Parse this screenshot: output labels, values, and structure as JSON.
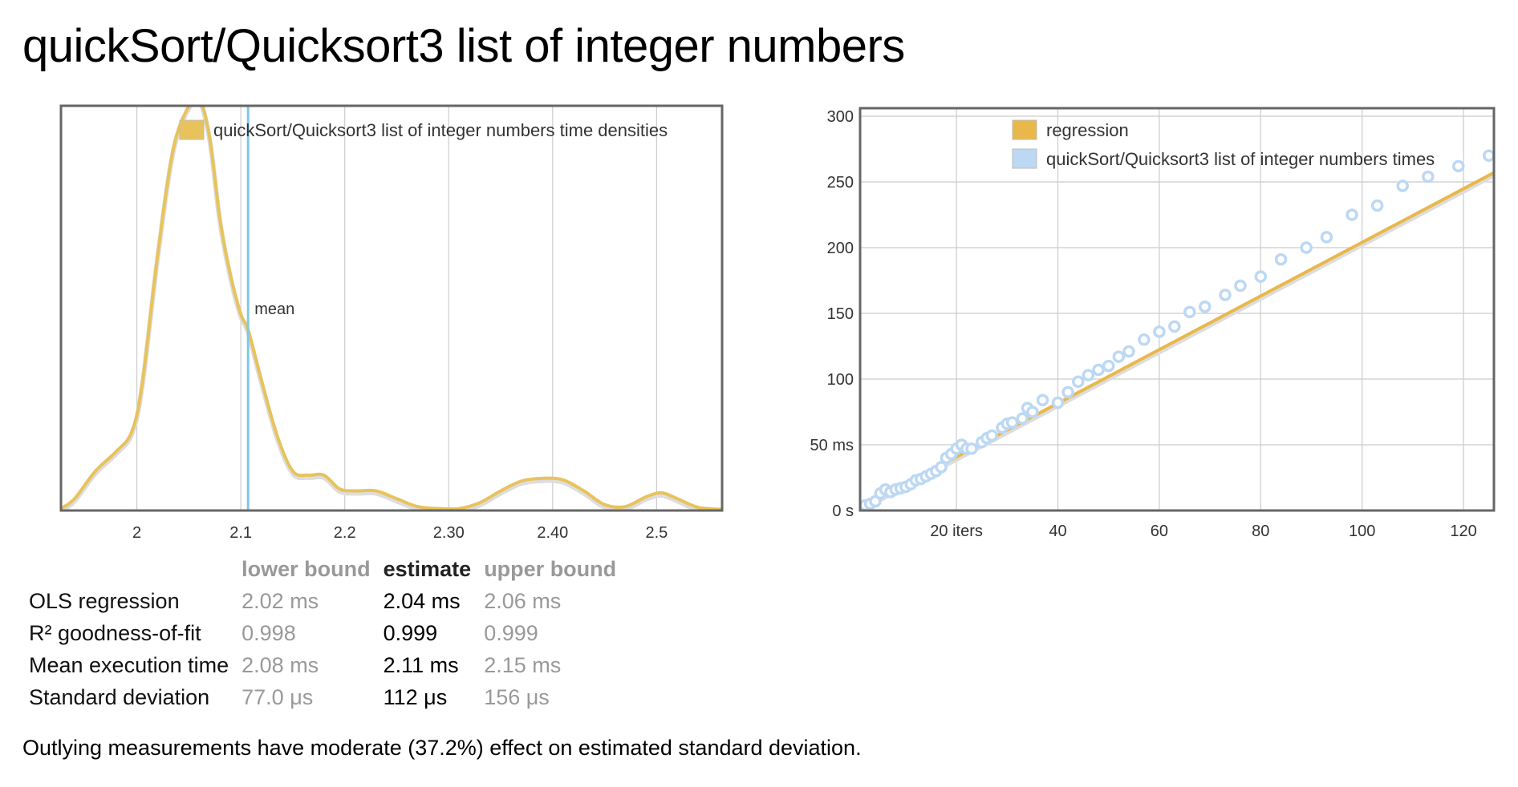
{
  "page": {
    "title": "quickSort/Quicksort3 list of integer numbers",
    "outlier_note": "Outlying measurements have moderate (37.2%) effect on estimated standard deviation."
  },
  "colors": {
    "density": "#e8c35c",
    "mean_line": "#7fc8e8",
    "regression": "#e8b84a",
    "points": "#bcd8f3",
    "grid": "#cccccc",
    "frame": "#666666"
  },
  "chart_data": [
    {
      "type": "line",
      "title": "",
      "legend": [
        "quickSort/Quicksort3 list of integer numbers time densities"
      ],
      "legend_position": "top-right",
      "xlim": [
        1.927,
        2.563
      ],
      "ylim": [
        0,
        1.0
      ],
      "x_ticks": [
        2.0,
        2.1,
        2.2,
        2.3,
        2.4,
        2.5
      ],
      "x_tick_labels": [
        "2",
        "2.1",
        "2.2",
        "2.30",
        "2.40",
        "2.5"
      ],
      "mean": 2.107,
      "mean_label": "mean",
      "series": [
        {
          "name": "quickSort/Quicksort3 list of integer numbers time densities",
          "x": [
            1.927,
            1.94,
            1.96,
            1.98,
            1.995,
            2.005,
            2.02,
            2.035,
            2.05,
            2.06,
            2.07,
            2.08,
            2.09,
            2.1,
            2.107,
            2.12,
            2.135,
            2.15,
            2.165,
            2.18,
            2.195,
            2.21,
            2.23,
            2.25,
            2.27,
            2.29,
            2.31,
            2.33,
            2.35,
            2.37,
            2.39,
            2.41,
            2.43,
            2.45,
            2.47,
            2.49,
            2.505,
            2.52,
            2.54,
            2.563
          ],
          "y": [
            0.005,
            0.03,
            0.1,
            0.15,
            0.2,
            0.32,
            0.65,
            0.92,
            1.03,
            1.05,
            0.95,
            0.74,
            0.6,
            0.5,
            0.46,
            0.33,
            0.19,
            0.1,
            0.09,
            0.09,
            0.055,
            0.05,
            0.05,
            0.03,
            0.01,
            0.005,
            0.005,
            0.02,
            0.05,
            0.075,
            0.082,
            0.078,
            0.05,
            0.015,
            0.01,
            0.035,
            0.045,
            0.03,
            0.008,
            0.003
          ]
        }
      ]
    },
    {
      "type": "scatter",
      "title": "",
      "legend": [
        "regression",
        "quickSort/Quicksort3 list of integer numbers times"
      ],
      "legend_position": "top-right",
      "xlim": [
        1,
        126
      ],
      "ylim": [
        0,
        300
      ],
      "x_ticks": [
        20,
        40,
        60,
        80,
        100,
        120
      ],
      "x_tick_labels": [
        "20 iters",
        "40",
        "60",
        "80",
        "100",
        "120"
      ],
      "y_ticks": [
        0,
        50,
        100,
        150,
        200,
        250,
        300
      ],
      "y_tick_labels": [
        "0 s",
        "50 ms",
        "100",
        "150",
        "200",
        "250",
        "300"
      ],
      "xlabel": "iters",
      "ylabel": "ms",
      "regression": {
        "slope": 2.04,
        "intercept": 0
      },
      "series": [
        {
          "name": "quickSort/Quicksort3 list of integer numbers times",
          "x": [
            2,
            3,
            4,
            5,
            6,
            7,
            8,
            9,
            10,
            11,
            12,
            13,
            14,
            15,
            16,
            17,
            18,
            19,
            20,
            21,
            22,
            23,
            25,
            26,
            27,
            29,
            30,
            31,
            33,
            34,
            35,
            37,
            40,
            42,
            44,
            46,
            48,
            50,
            52,
            54,
            57,
            60,
            63,
            66,
            69,
            73,
            76,
            80,
            84,
            89,
            93,
            98,
            103,
            108,
            113,
            119,
            125
          ],
          "y": [
            4,
            5,
            7,
            13,
            16,
            14,
            16,
            17,
            18,
            20,
            23,
            24,
            26,
            28,
            30,
            33,
            40,
            43,
            47,
            50,
            47,
            47,
            52,
            55,
            57,
            63,
            66,
            67,
            70,
            78,
            75,
            84,
            82,
            90,
            98,
            103,
            107,
            110,
            117,
            121,
            130,
            136,
            140,
            151,
            155,
            164,
            171,
            178,
            191,
            200,
            208,
            225,
            232,
            247,
            254,
            262,
            270
          ]
        }
      ]
    }
  ],
  "stats": {
    "headers": {
      "lower": "lower bound",
      "estimate": "estimate",
      "upper": "upper bound"
    },
    "rows": [
      {
        "label": "OLS regression",
        "lower": "2.02 ms",
        "estimate": "2.04 ms",
        "upper": "2.06 ms"
      },
      {
        "label": "R² goodness-of-fit",
        "lower": "0.998",
        "estimate": "0.999",
        "upper": "0.999"
      },
      {
        "label": "Mean execution time",
        "lower": "2.08 ms",
        "estimate": "2.11 ms",
        "upper": "2.15 ms"
      },
      {
        "label": "Standard deviation",
        "lower": "77.0 μs",
        "estimate": "112 μs",
        "upper": "156 μs"
      }
    ]
  }
}
